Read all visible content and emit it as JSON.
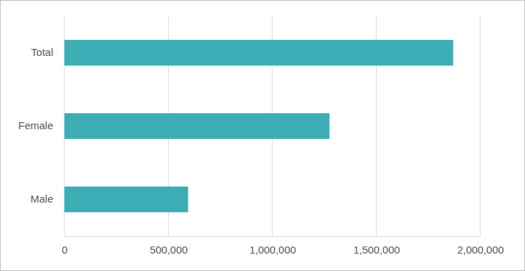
{
  "chart_data": {
    "type": "bar",
    "orientation": "horizontal",
    "categories": [
      "Total",
      "Female",
      "Male"
    ],
    "values": [
      1870000,
      1275000,
      595000
    ],
    "color": "#3dadb5",
    "xlim": [
      0,
      2000000
    ],
    "xticks": [
      0,
      {
        "value": 500000,
        "label": "500,000"
      },
      {
        "value": 1000000,
        "label": "1,000,000"
      },
      {
        "value": 1500000,
        "label": "1,500,000"
      },
      {
        "value": 2000000,
        "label": "2,000,000"
      }
    ],
    "grid": true
  }
}
